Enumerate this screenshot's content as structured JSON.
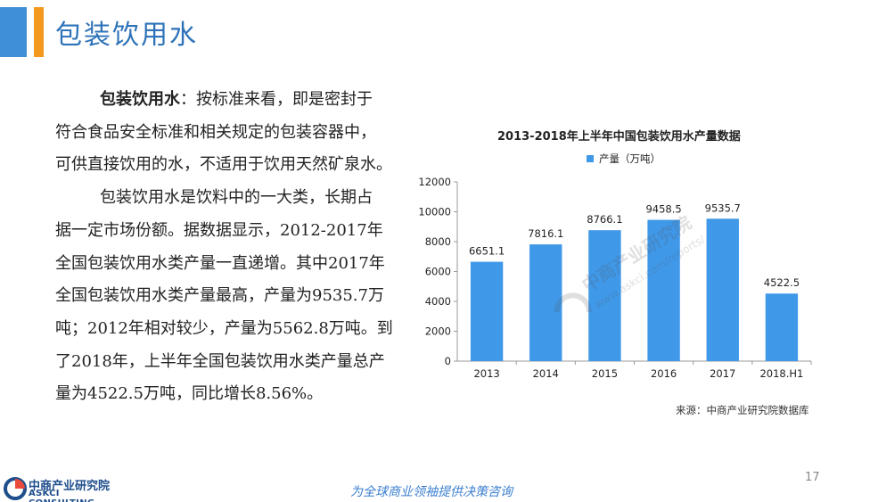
{
  "header": {
    "title": "包装饮用水"
  },
  "body": {
    "p1_bold": "包装饮用水",
    "p1_rest": "：按标准来看，即是密封于",
    "p1_line2": "符合食品安全标准和相关规定的包装容器中，",
    "p1_line3": "可供直接饮用的水，不适用于饮用天然矿泉水。",
    "p2_lines": [
      "包装饮用水是饮料中的一大类，长期占",
      "据一定市场份额。据数据显示，2012-2017年",
      "全国包装饮用水类产量一直递增。其中2017年",
      "全国包装饮用水类产量最高，产量为9535.7万",
      "吨；2012年相对较少，产量为5562.8万吨。到",
      "了2018年，上半年全国包装饮用水类产量总产",
      "量为4522.5万吨，同比增长8.56%。"
    ]
  },
  "chart_data": {
    "type": "bar",
    "title": "2013-2018年上半年中国包装饮用水产量数据",
    "legend": "产量（万吨）",
    "categories": [
      "2013",
      "2014",
      "2015",
      "2016",
      "2017",
      "2018.H1"
    ],
    "values": [
      6651.1,
      7816.1,
      8766.1,
      9458.5,
      9535.7,
      4522.5
    ],
    "value_labels": [
      "6651.1",
      "7816.1",
      "8766.1",
      "9458.5",
      "9535.7",
      "4522.5"
    ],
    "ylim": [
      0,
      12000
    ],
    "yticks": [
      0,
      2000,
      4000,
      6000,
      8000,
      10000,
      12000
    ],
    "bar_color": "#3f98e8",
    "legend_position": "top"
  },
  "source": "来源：中商产业研究院数据库",
  "footer": {
    "logo_cn": "中商产业研究院",
    "logo_en": "ASKCI CONSULTING",
    "slogan": "为全球商业领袖提供决策咨询",
    "page": "17"
  },
  "watermark": {
    "cn": "中商产业研究院",
    "url": "www.askci.com/reports/"
  },
  "colors": {
    "accent_blue": "#3f8fd6",
    "accent_orange": "#f39a1e",
    "title_blue": "#2e73b8"
  }
}
